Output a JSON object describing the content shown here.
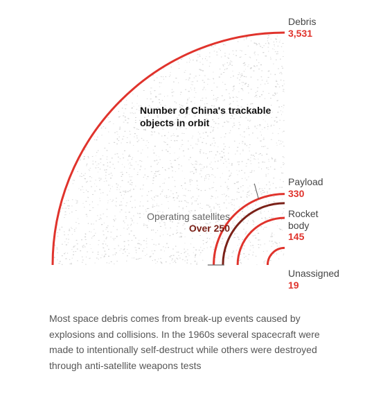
{
  "chart_data": {
    "type": "quarter-circle",
    "title": "Number of China's trackable objects in orbit",
    "categories": [
      {
        "name": "Debris",
        "value": 3531,
        "display": "3,531",
        "color": "#e0332c"
      },
      {
        "name": "Payload",
        "value": 330,
        "display": "330",
        "color": "#e0332c"
      },
      {
        "name": "Rocket body",
        "name_lines": [
          "Rocket",
          "body"
        ],
        "value": 145,
        "display": "145",
        "color": "#e0332c"
      },
      {
        "name": "Unassigned",
        "value": 19,
        "display": "19",
        "color": "#e0332c"
      }
    ],
    "highlight": {
      "name": "Operating satellites",
      "display": "Over 250",
      "value": 250,
      "of": "Payload",
      "color": "#7a2118"
    },
    "scale": "area"
  },
  "colors": {
    "accent": "#e0332c",
    "dark_accent": "#7a2118",
    "label": "#444444",
    "texture": "#cfcfcf"
  },
  "caption": "Most space debris comes from break-up events caused by explosions and collisions. In the 1960s several spacecraft were made to intentionally self-destruct while others were destroyed through anti-satellite weapons tests"
}
